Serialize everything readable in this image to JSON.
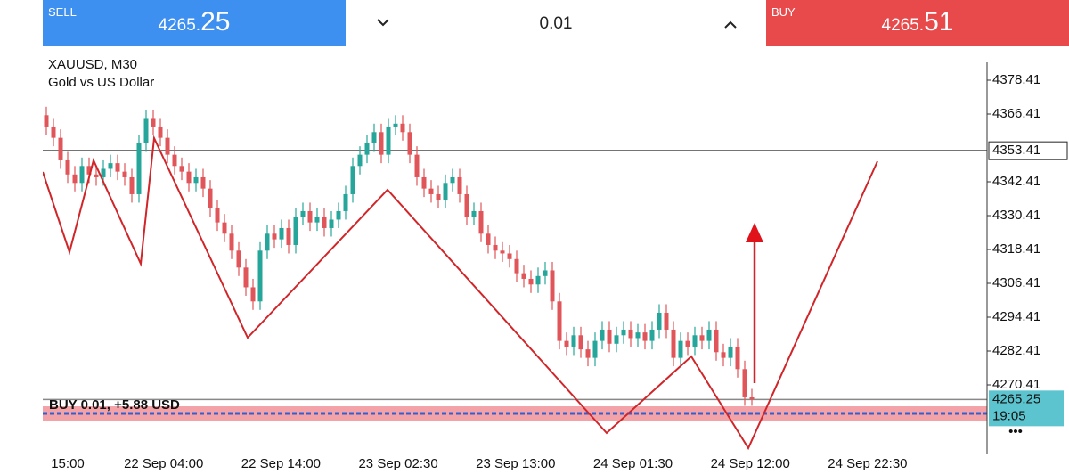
{
  "header": {
    "sell": {
      "label": "SELL",
      "price_main": "4265.",
      "price_big": "25"
    },
    "volume": "0.01",
    "buy": {
      "label": "BUY",
      "price_main": "4265.",
      "price_big": "51"
    }
  },
  "chart_data": {
    "type": "candlestick",
    "title": "XAUUSD, M30",
    "subtitle": "Gold vs US Dollar",
    "up_color": "#26a69a",
    "down_color": "#e0555a",
    "ylim": [
      4245.78,
      4390.41
    ],
    "yticks": [
      4378.41,
      4366.41,
      4342.41,
      4330.41,
      4318.41,
      4306.41,
      4294.41,
      4282.41,
      4270.41
    ],
    "xticks": [
      "15:00",
      "22 Sep 04:00",
      "22 Sep 14:00",
      "23 Sep 02:30",
      "23 Sep 13:00",
      "24 Sep 01:30",
      "24 Sep 12:00",
      "24 Sep 22:30"
    ],
    "level": {
      "value": 4353.41,
      "label": "4353.41"
    },
    "current_price": {
      "value": 4265.25,
      "label": "4265.25"
    },
    "timer": "19:05",
    "position": {
      "label": "BUY 0.01,  +5.88 USD",
      "value": 4260.3
    },
    "candles": [
      [
        4366,
        4369,
        4359,
        4362
      ],
      [
        4362,
        4365,
        4355,
        4358
      ],
      [
        4358,
        4361,
        4347,
        4350
      ],
      [
        4350,
        4353,
        4342,
        4345
      ],
      [
        4345,
        4348,
        4339,
        4342
      ],
      [
        4342,
        4351,
        4339,
        4348
      ],
      [
        4348,
        4351,
        4342,
        4345
      ],
      [
        4345,
        4348,
        4341,
        4344
      ],
      [
        4344,
        4350,
        4341,
        4347
      ],
      [
        4347,
        4352,
        4344,
        4349
      ],
      [
        4349,
        4352,
        4343,
        4346
      ],
      [
        4346,
        4349,
        4341,
        4344
      ],
      [
        4344,
        4347,
        4335,
        4338
      ],
      [
        4338,
        4359,
        4335,
        4356
      ],
      [
        4356,
        4368,
        4353,
        4365
      ],
      [
        4365,
        4368,
        4359,
        4362
      ],
      [
        4362,
        4365,
        4355,
        4358
      ],
      [
        4358,
        4361,
        4349,
        4352
      ],
      [
        4352,
        4355,
        4345,
        4348
      ],
      [
        4348,
        4351,
        4343,
        4346
      ],
      [
        4346,
        4349,
        4339,
        4342
      ],
      [
        4342,
        4347,
        4339,
        4344
      ],
      [
        4344,
        4347,
        4337,
        4340
      ],
      [
        4340,
        4343,
        4330,
        4333
      ],
      [
        4333,
        4336,
        4325,
        4328
      ],
      [
        4328,
        4331,
        4321,
        4324
      ],
      [
        4324,
        4327,
        4315,
        4318
      ],
      [
        4318,
        4321,
        4309,
        4312
      ],
      [
        4312,
        4315,
        4302,
        4305
      ],
      [
        4305,
        4308,
        4297,
        4300
      ],
      [
        4300,
        4321,
        4297,
        4318
      ],
      [
        4318,
        4327,
        4315,
        4324
      ],
      [
        4324,
        4327,
        4319,
        4322
      ],
      [
        4322,
        4329,
        4319,
        4326
      ],
      [
        4326,
        4329,
        4317,
        4320
      ],
      [
        4320,
        4333,
        4317,
        4330
      ],
      [
        4330,
        4335,
        4327,
        4332
      ],
      [
        4332,
        4335,
        4325,
        4328
      ],
      [
        4328,
        4333,
        4325,
        4330
      ],
      [
        4330,
        4333,
        4323,
        4326
      ],
      [
        4326,
        4332,
        4323,
        4329
      ],
      [
        4329,
        4335,
        4326,
        4332
      ],
      [
        4332,
        4341,
        4329,
        4338
      ],
      [
        4338,
        4351,
        4335,
        4348
      ],
      [
        4348,
        4355,
        4345,
        4352
      ],
      [
        4352,
        4359,
        4349,
        4356
      ],
      [
        4356,
        4363,
        4353,
        4360
      ],
      [
        4360,
        4363,
        4349,
        4352
      ],
      [
        4352,
        4365,
        4349,
        4362
      ],
      [
        4362,
        4366,
        4359,
        4363
      ],
      [
        4363,
        4366,
        4357,
        4360
      ],
      [
        4360,
        4363,
        4349,
        4352
      ],
      [
        4352,
        4355,
        4341,
        4344
      ],
      [
        4344,
        4347,
        4337,
        4340
      ],
      [
        4340,
        4343,
        4335,
        4338
      ],
      [
        4338,
        4341,
        4333,
        4336
      ],
      [
        4336,
        4345,
        4333,
        4342
      ],
      [
        4342,
        4347,
        4339,
        4344
      ],
      [
        4344,
        4347,
        4335,
        4338
      ],
      [
        4338,
        4341,
        4327,
        4330
      ],
      [
        4330,
        4335,
        4327,
        4332
      ],
      [
        4332,
        4335,
        4321,
        4324
      ],
      [
        4324,
        4327,
        4317,
        4320
      ],
      [
        4320,
        4323,
        4315,
        4318
      ],
      [
        4318,
        4321,
        4314,
        4317
      ],
      [
        4317,
        4320,
        4312,
        4315
      ],
      [
        4315,
        4318,
        4307,
        4310
      ],
      [
        4310,
        4313,
        4305,
        4308
      ],
      [
        4308,
        4311,
        4303,
        4306
      ],
      [
        4306,
        4312,
        4303,
        4309
      ],
      [
        4309,
        4314,
        4306,
        4311
      ],
      [
        4311,
        4314,
        4297,
        4300
      ],
      [
        4300,
        4303,
        4283,
        4286
      ],
      [
        4286,
        4289,
        4281,
        4284
      ],
      [
        4284,
        4291,
        4281,
        4288
      ],
      [
        4288,
        4291,
        4280,
        4283
      ],
      [
        4283,
        4286,
        4277,
        4280
      ],
      [
        4280,
        4289,
        4277,
        4286
      ],
      [
        4286,
        4293,
        4283,
        4290
      ],
      [
        4290,
        4293,
        4282,
        4285
      ],
      [
        4285,
        4291,
        4282,
        4288
      ],
      [
        4288,
        4293,
        4285,
        4290
      ],
      [
        4290,
        4293,
        4284,
        4287
      ],
      [
        4287,
        4292,
        4284,
        4289
      ],
      [
        4289,
        4292,
        4283,
        4286
      ],
      [
        4286,
        4293,
        4283,
        4290
      ],
      [
        4290,
        4299,
        4287,
        4296
      ],
      [
        4296,
        4299,
        4287,
        4290
      ],
      [
        4290,
        4293,
        4277,
        4280
      ],
      [
        4280,
        4289,
        4277,
        4286
      ],
      [
        4286,
        4289,
        4281,
        4284
      ],
      [
        4284,
        4291,
        4281,
        4288
      ],
      [
        4288,
        4291,
        4283,
        4286
      ],
      [
        4286,
        4293,
        4283,
        4290
      ],
      [
        4290,
        4293,
        4279,
        4282
      ],
      [
        4282,
        4285,
        4277,
        4280
      ],
      [
        4280,
        4287,
        4277,
        4284
      ],
      [
        4284,
        4287,
        4273,
        4276
      ],
      [
        4276,
        4279,
        4263,
        4266
      ],
      [
        4266,
        4269,
        4263,
        4265.25
      ]
    ]
  }
}
